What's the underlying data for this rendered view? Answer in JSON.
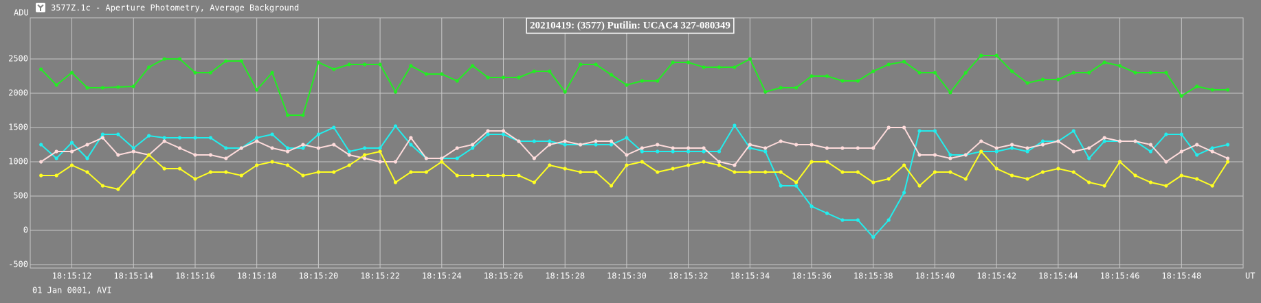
{
  "window_title": "3577Z.1c - Aperture Photometry, Average Background",
  "chart_data": {
    "type": "line",
    "title": "20210419: (3577) Putilin: UCAC4 327-080349",
    "ylabel": "ADU",
    "xlabel": "UT",
    "footnote": "01 Jan 0001, AVI",
    "grid": true,
    "xlim": [
      10.65,
      50
    ],
    "ylim": [
      -550,
      3100
    ],
    "yticks": [
      -500,
      0,
      500,
      1000,
      1500,
      2000,
      2500
    ],
    "xticks": [
      {
        "value": 12,
        "label": "18:15:12"
      },
      {
        "value": 14,
        "label": "18:15:14"
      },
      {
        "value": 16,
        "label": "18:15:16"
      },
      {
        "value": 18,
        "label": "18:15:18"
      },
      {
        "value": 20,
        "label": "18:15:20"
      },
      {
        "value": 22,
        "label": "18:15:22"
      },
      {
        "value": 24,
        "label": "18:15:24"
      },
      {
        "value": 26,
        "label": "18:15:26"
      },
      {
        "value": 28,
        "label": "18:15:28"
      },
      {
        "value": 30,
        "label": "18:15:30"
      },
      {
        "value": 32,
        "label": "18:15:32"
      },
      {
        "value": 34,
        "label": "18:15:34"
      },
      {
        "value": 36,
        "label": "18:15:36"
      },
      {
        "value": 38,
        "label": "18:15:38"
      },
      {
        "value": 40,
        "label": "18:15:40"
      },
      {
        "value": 42,
        "label": "18:15:42"
      },
      {
        "value": 44,
        "label": "18:15:44"
      },
      {
        "value": 46,
        "label": "18:15:46"
      },
      {
        "value": 48,
        "label": "18:15:48"
      }
    ],
    "x": [
      11,
      11.5,
      12,
      12.5,
      13,
      13.5,
      14,
      14.5,
      15,
      15.5,
      16,
      16.5,
      17,
      17.5,
      18,
      18.5,
      19,
      19.5,
      20,
      20.5,
      21,
      21.5,
      22,
      22.5,
      23,
      23.5,
      24,
      24.5,
      25,
      25.5,
      26,
      26.5,
      27,
      27.5,
      28,
      28.5,
      29,
      29.5,
      30,
      30.5,
      31,
      31.5,
      32,
      32.5,
      33,
      33.5,
      34,
      34.5,
      35,
      35.5,
      36,
      36.5,
      37,
      37.5,
      38,
      38.5,
      39,
      39.5,
      40,
      40.5,
      41,
      41.5,
      42,
      42.5,
      43,
      43.5,
      44,
      44.5,
      45,
      45.5,
      46,
      46.5,
      47,
      47.5,
      48,
      48.5,
      49,
      49.5
    ],
    "series": [
      {
        "color": "#22ee22",
        "values": [
          2350,
          2120,
          2300,
          2080,
          2080,
          2090,
          2100,
          2380,
          2500,
          2500,
          2300,
          2300,
          2470,
          2470,
          2050,
          2300,
          1680,
          1680,
          2450,
          2350,
          2420,
          2420,
          2420,
          2020,
          2400,
          2280,
          2280,
          2180,
          2400,
          2230,
          2230,
          2230,
          2320,
          2320,
          2020,
          2420,
          2420,
          2270,
          2120,
          2180,
          2180,
          2450,
          2450,
          2380,
          2380,
          2380,
          2500,
          2020,
          2080,
          2080,
          2250,
          2250,
          2180,
          2180,
          2320,
          2420,
          2460,
          2300,
          2300,
          2010,
          2300,
          2550,
          2550,
          2320,
          2150,
          2200,
          2200,
          2300,
          2300,
          2450,
          2400,
          2300,
          2300,
          2300,
          1960,
          2100,
          2050,
          2050
        ]
      },
      {
        "color": "#22eeee",
        "values": [
          1250,
          1050,
          1280,
          1050,
          1400,
          1400,
          1200,
          1380,
          1350,
          1350,
          1350,
          1350,
          1200,
          1200,
          1350,
          1400,
          1200,
          1200,
          1400,
          1500,
          1150,
          1200,
          1200,
          1520,
          1250,
          1050,
          1050,
          1050,
          1200,
          1400,
          1400,
          1300,
          1300,
          1300,
          1250,
          1250,
          1250,
          1250,
          1350,
          1150,
          1150,
          1150,
          1150,
          1150,
          1150,
          1530,
          1200,
          1150,
          650,
          650,
          350,
          250,
          150,
          150,
          -100,
          150,
          550,
          1450,
          1450,
          1100,
          1100,
          1150,
          1150,
          1200,
          1150,
          1300,
          1300,
          1450,
          1050,
          1300,
          1300,
          1300,
          1150,
          1400,
          1400,
          1100,
          1200,
          1250
        ]
      },
      {
        "color": "#ffdcdc",
        "values": [
          1000,
          1150,
          1150,
          1250,
          1350,
          1100,
          1150,
          1100,
          1300,
          1200,
          1100,
          1100,
          1050,
          1200,
          1300,
          1200,
          1150,
          1250,
          1200,
          1250,
          1100,
          1050,
          1000,
          1000,
          1350,
          1050,
          1050,
          1200,
          1250,
          1450,
          1450,
          1300,
          1050,
          1250,
          1300,
          1250,
          1300,
          1300,
          1100,
          1200,
          1250,
          1200,
          1200,
          1200,
          1000,
          950,
          1250,
          1200,
          1300,
          1250,
          1250,
          1200,
          1200,
          1200,
          1200,
          1500,
          1500,
          1100,
          1100,
          1050,
          1100,
          1300,
          1200,
          1250,
          1200,
          1250,
          1300,
          1150,
          1200,
          1350,
          1300,
          1300,
          1250,
          1000,
          1150,
          1250,
          1150,
          1050
        ]
      },
      {
        "color": "#ffff22",
        "values": [
          800,
          800,
          950,
          850,
          650,
          600,
          850,
          1100,
          900,
          900,
          750,
          850,
          850,
          800,
          950,
          1000,
          950,
          800,
          850,
          850,
          950,
          1100,
          1150,
          700,
          850,
          850,
          1000,
          800,
          800,
          800,
          800,
          800,
          700,
          950,
          900,
          850,
          850,
          650,
          950,
          1000,
          850,
          900,
          950,
          1000,
          950,
          850,
          850,
          850,
          850,
          700,
          1000,
          1000,
          850,
          850,
          700,
          750,
          950,
          650,
          850,
          850,
          750,
          1150,
          900,
          800,
          750,
          850,
          900,
          850,
          700,
          650,
          1000,
          800,
          700,
          650,
          800,
          750,
          650,
          1000
        ]
      }
    ]
  }
}
